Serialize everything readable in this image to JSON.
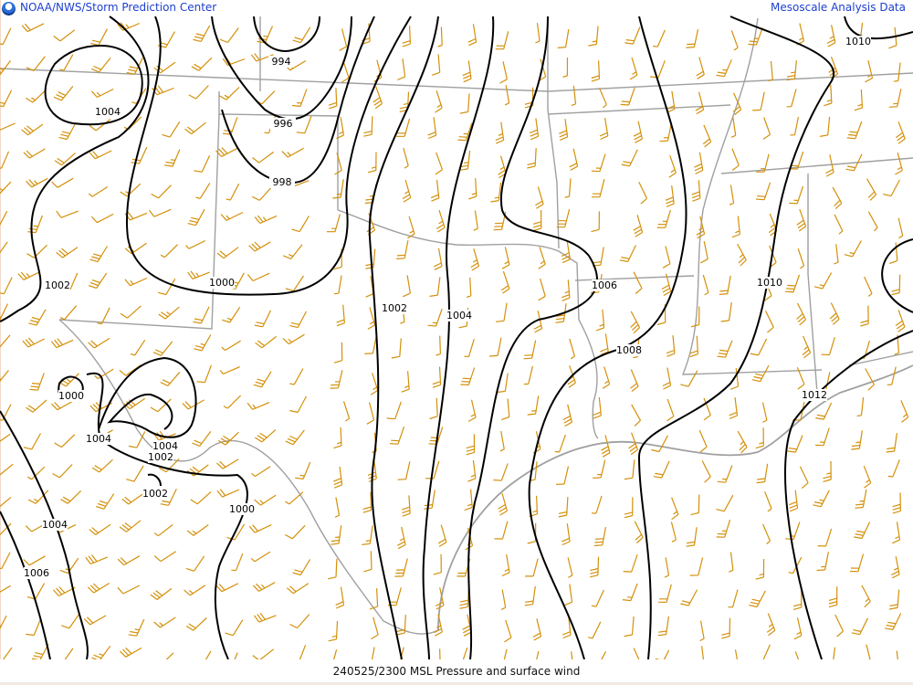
{
  "header": {
    "left_title": "NOAA/NWS/Storm Prediction Center",
    "right_title": "Mesoscale Analysis Data",
    "logo": "noaa-logo"
  },
  "footer": {
    "caption": "240525/2300 MSL Pressure and surface wind"
  },
  "colors": {
    "isobar": "#000000",
    "wind_barb": "#d4900a",
    "border": "#a0a0a0",
    "header_text": "#1d3fd0"
  },
  "isobar_labels": [
    "1010",
    "994",
    "1004",
    "996",
    "998",
    "1000",
    "1002",
    "1002",
    "1004",
    "1006",
    "1010",
    "1008",
    "1012",
    "1000",
    "1004",
    "1004",
    "1002",
    "1002",
    "1000",
    "1004",
    "1006"
  ]
}
